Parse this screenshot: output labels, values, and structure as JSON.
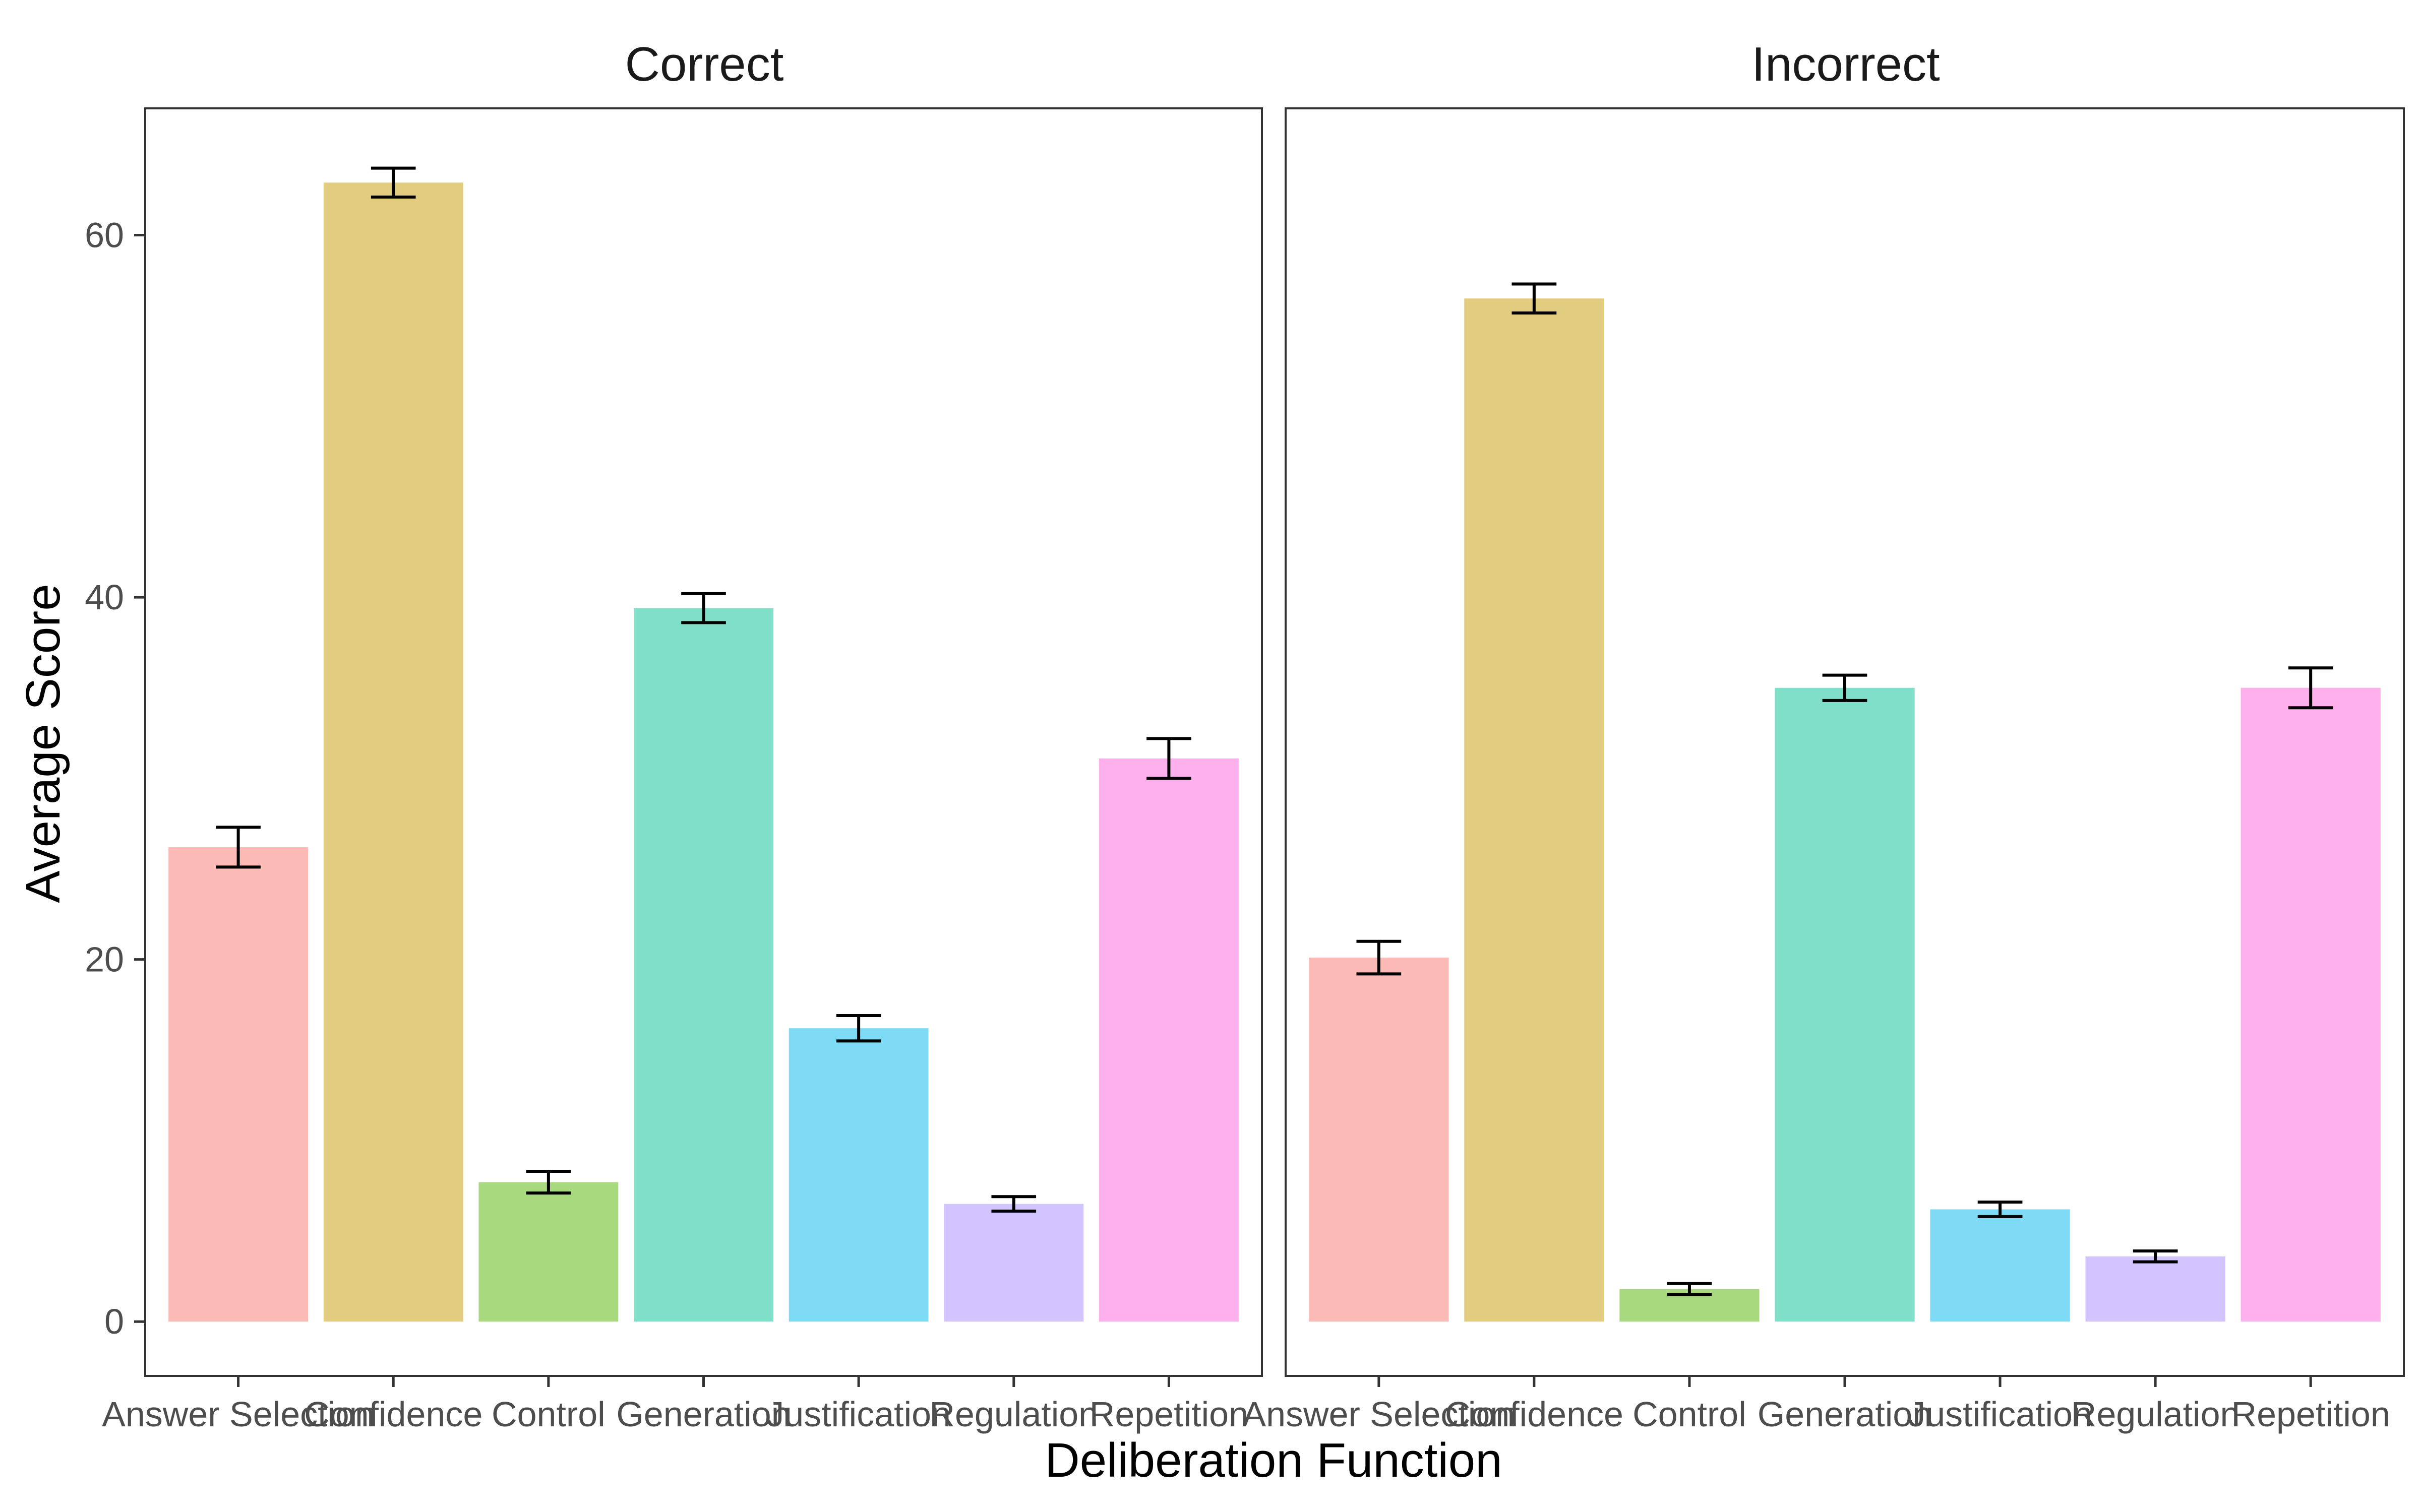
{
  "chart_data": {
    "type": "bar",
    "xlabel": "Deliberation Function",
    "ylabel": "Average Score",
    "ylim": [
      -3,
      67
    ],
    "yticks": [
      0,
      20,
      40,
      60
    ],
    "categories": [
      "Answer Selection",
      "Confidence",
      "Control",
      "Generation",
      "Justification",
      "Regulation",
      "Repetition"
    ],
    "colors": [
      "#F8766D",
      "#C49A00",
      "#53B400",
      "#00C094",
      "#00B6EB",
      "#A58AFF",
      "#FB61D7"
    ],
    "bar_opacity": 0.5,
    "grid": false,
    "legend": "none",
    "panels": [
      {
        "title": "Correct",
        "values": [
          26.2,
          62.9,
          7.7,
          39.4,
          16.2,
          6.5,
          31.1
        ],
        "errors": [
          1.1,
          0.8,
          0.6,
          0.8,
          0.7,
          0.4,
          1.1
        ]
      },
      {
        "title": "Incorrect",
        "values": [
          20.1,
          56.5,
          1.8,
          35.0,
          6.2,
          3.6,
          35.0
        ],
        "errors": [
          0.9,
          0.8,
          0.3,
          0.7,
          0.4,
          0.3,
          1.1
        ]
      }
    ]
  }
}
